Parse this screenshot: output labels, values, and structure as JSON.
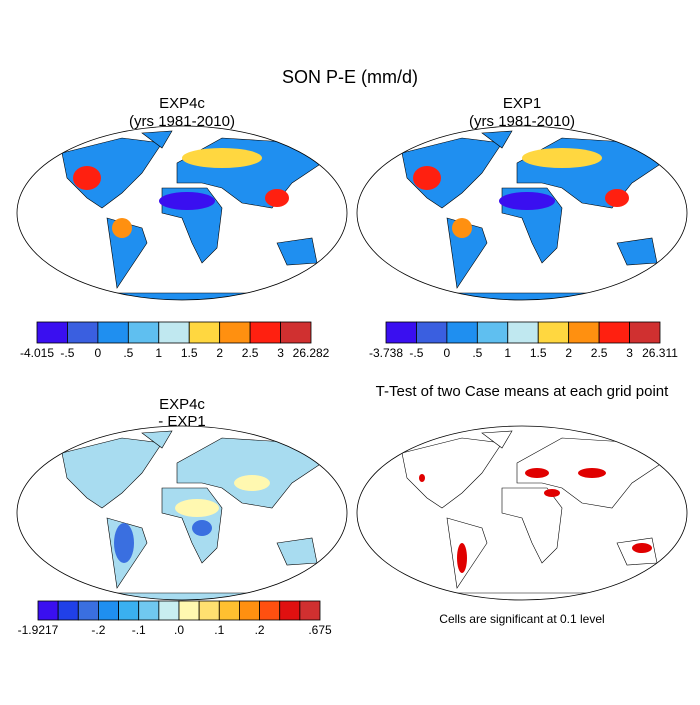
{
  "title": "SON P-E (mm/d)",
  "panels": [
    {
      "title": [
        "EXP4c",
        "(yrs 1981-2010)"
      ],
      "colorbar": {
        "labels": [
          "-4.015",
          "-.5",
          "0",
          ".5",
          "1",
          "1.5",
          "2",
          "2.5",
          "3",
          "26.282"
        ],
        "colors": [
          "#3a0ff0",
          "#3a5fe0",
          "#1f8ff0",
          "#5fbff0",
          "#c0e8f0",
          "#ffd740",
          "#ff9010",
          "#ff2010",
          "#d03030"
        ]
      }
    },
    {
      "title": [
        "EXP1",
        "(yrs 1981-2010)"
      ],
      "colorbar": {
        "labels": [
          "-3.738",
          "-.5",
          "0",
          ".5",
          "1",
          "1.5",
          "2",
          "2.5",
          "3",
          "26.311"
        ],
        "colors": [
          "#3a0ff0",
          "#3a5fe0",
          "#1f8ff0",
          "#5fbff0",
          "#c0e8f0",
          "#ffd740",
          "#ff9010",
          "#ff2010",
          "#d03030"
        ]
      }
    },
    {
      "title": [
        "EXP4c",
        "- EXP1"
      ],
      "colorbar": {
        "labels": [
          "-1.9217",
          null,
          null,
          "-.2",
          null,
          "-.1",
          null,
          ".0",
          null,
          ".1",
          null,
          ".2",
          null,
          null,
          ".675"
        ],
        "colors": [
          "#3a0ff0",
          "#2040e8",
          "#3a6fe0",
          "#1f8ff0",
          "#3ab0f0",
          "#70c8f0",
          "#c8eef0",
          "#fff8b0",
          "#ffe070",
          "#ffc030",
          "#ff9010",
          "#ff5010",
          "#e01010",
          "#d03030"
        ]
      }
    },
    {
      "title": [
        "T-Test of two Case means at each grid point"
      ],
      "note": "Cells are significant at 0.1 level"
    }
  ]
}
